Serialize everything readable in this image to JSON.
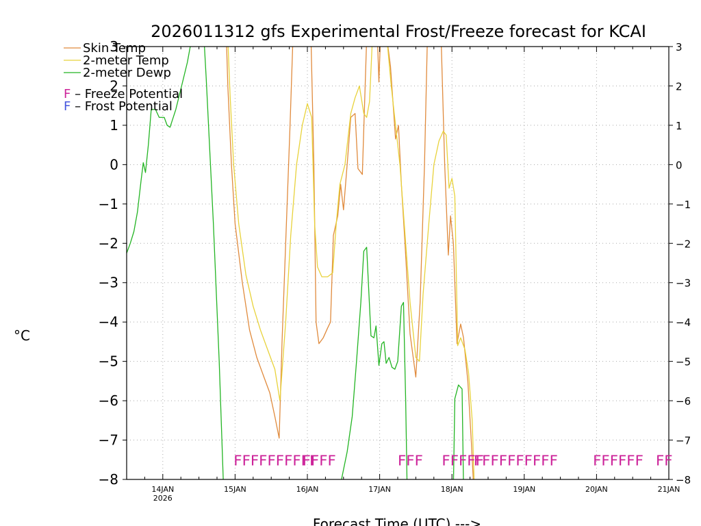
{
  "chart_data": {
    "type": "line",
    "title": "2026011312 gfs Experimental Frost/Freeze forecast for KCAI",
    "ylabel": "°C",
    "xlabel": "Forecast Time (UTC) --->",
    "ylim": [
      -8,
      3
    ],
    "xlim": [
      0,
      7.5
    ],
    "yticks": [
      -8,
      -7,
      -6,
      -5,
      -4,
      -3,
      -2,
      -1,
      0,
      1,
      2,
      3
    ],
    "yticks_right": [
      -8,
      -7,
      -6,
      -5,
      -4,
      -3,
      -2,
      -1,
      0,
      1,
      2,
      3
    ],
    "xticks": [
      {
        "x": 0.5,
        "label": "14JAN",
        "sub": "2026"
      },
      {
        "x": 1.5,
        "label": "15JAN",
        "sub": ""
      },
      {
        "x": 2.5,
        "label": "16JAN",
        "sub": ""
      },
      {
        "x": 3.5,
        "label": "17JAN",
        "sub": ""
      },
      {
        "x": 4.5,
        "label": "18JAN",
        "sub": ""
      },
      {
        "x": 5.5,
        "label": "19JAN",
        "sub": ""
      },
      {
        "x": 6.5,
        "label": "20JAN",
        "sub": ""
      },
      {
        "x": 7.5,
        "label": "21JAN",
        "sub": ""
      }
    ],
    "grid": true,
    "legend_position": "top-left",
    "colors": {
      "skin": "#e08a3c",
      "t2m": "#e8d23a",
      "dewp": "#22b422",
      "freeze": "#cc2299",
      "frost": "#4455dd"
    },
    "series": [
      {
        "name": "Skin Temp",
        "key": "skin",
        "points": [
          [
            1.38,
            3.2
          ],
          [
            1.4,
            2.0
          ],
          [
            1.45,
            0.0
          ],
          [
            1.5,
            -1.5
          ],
          [
            1.6,
            -3.0
          ],
          [
            1.7,
            -4.2
          ],
          [
            1.8,
            -4.9
          ],
          [
            1.9,
            -5.4
          ],
          [
            1.98,
            -5.8
          ],
          [
            2.05,
            -6.4
          ],
          [
            2.11,
            -6.95
          ],
          [
            2.15,
            -4.5
          ],
          [
            2.2,
            -2.0
          ],
          [
            2.26,
            1.0
          ],
          [
            2.3,
            3.2
          ],
          [
            2.55,
            3.2
          ],
          [
            2.59,
            0.0
          ],
          [
            2.62,
            -4.0
          ],
          [
            2.66,
            -4.55
          ],
          [
            2.72,
            -4.4
          ],
          [
            2.78,
            -4.15
          ],
          [
            2.82,
            -4.0
          ],
          [
            2.86,
            -1.8
          ],
          [
            2.92,
            -1.3
          ],
          [
            2.96,
            -0.5
          ],
          [
            3.0,
            -1.15
          ],
          [
            3.05,
            0.0
          ],
          [
            3.1,
            1.2
          ],
          [
            3.16,
            1.3
          ],
          [
            3.2,
            -0.1
          ],
          [
            3.26,
            -0.25
          ],
          [
            3.32,
            3.2
          ],
          [
            3.47,
            3.2
          ],
          [
            3.49,
            2.1
          ],
          [
            3.51,
            3.2
          ],
          [
            3.6,
            3.2
          ],
          [
            3.65,
            2.5
          ],
          [
            3.72,
            0.65
          ],
          [
            3.76,
            1.0
          ],
          [
            3.8,
            -0.5
          ],
          [
            3.85,
            -2.0
          ],
          [
            3.92,
            -4.3
          ],
          [
            4.0,
            -5.4
          ],
          [
            4.06,
            -3.5
          ],
          [
            4.12,
            0.0
          ],
          [
            4.16,
            3.2
          ],
          [
            4.35,
            3.2
          ],
          [
            4.4,
            0.0
          ],
          [
            4.45,
            -2.3
          ],
          [
            4.48,
            -1.3
          ],
          [
            4.52,
            -2.0
          ],
          [
            4.57,
            -4.55
          ],
          [
            4.62,
            -4.05
          ],
          [
            4.66,
            -4.4
          ],
          [
            4.72,
            -5.5
          ],
          [
            4.77,
            -7.1
          ],
          [
            4.8,
            -8.2
          ]
        ]
      },
      {
        "name": "2-meter Temp",
        "key": "t2m",
        "points": [
          [
            1.4,
            3.2
          ],
          [
            1.43,
            1.8
          ],
          [
            1.48,
            0.0
          ],
          [
            1.55,
            -1.5
          ],
          [
            1.65,
            -2.8
          ],
          [
            1.75,
            -3.6
          ],
          [
            1.85,
            -4.2
          ],
          [
            1.95,
            -4.7
          ],
          [
            2.05,
            -5.2
          ],
          [
            2.12,
            -6.0
          ],
          [
            2.2,
            -4.0
          ],
          [
            2.27,
            -1.8
          ],
          [
            2.35,
            0.0
          ],
          [
            2.43,
            1.0
          ],
          [
            2.5,
            1.55
          ],
          [
            2.56,
            1.2
          ],
          [
            2.6,
            -1.5
          ],
          [
            2.64,
            -2.6
          ],
          [
            2.7,
            -2.85
          ],
          [
            2.78,
            -2.85
          ],
          [
            2.85,
            -2.75
          ],
          [
            2.9,
            -1.5
          ],
          [
            2.95,
            -0.5
          ],
          [
            3.02,
            0.0
          ],
          [
            3.1,
            1.3
          ],
          [
            3.16,
            1.7
          ],
          [
            3.22,
            2.0
          ],
          [
            3.28,
            1.3
          ],
          [
            3.32,
            1.2
          ],
          [
            3.36,
            1.6
          ],
          [
            3.4,
            3.2
          ],
          [
            3.6,
            3.2
          ],
          [
            3.66,
            2.0
          ],
          [
            3.72,
            1.0
          ],
          [
            3.78,
            0.0
          ],
          [
            3.84,
            -1.5
          ],
          [
            3.92,
            -3.5
          ],
          [
            4.0,
            -4.9
          ],
          [
            4.05,
            -5.0
          ],
          [
            4.1,
            -3.3
          ],
          [
            4.18,
            -1.5
          ],
          [
            4.25,
            0.0
          ],
          [
            4.32,
            0.6
          ],
          [
            4.38,
            0.85
          ],
          [
            4.42,
            0.75
          ],
          [
            4.46,
            -0.6
          ],
          [
            4.5,
            -0.35
          ],
          [
            4.54,
            -0.8
          ],
          [
            4.58,
            -4.6
          ],
          [
            4.62,
            -4.4
          ],
          [
            4.68,
            -4.7
          ],
          [
            4.73,
            -5.3
          ],
          [
            4.78,
            -6.5
          ],
          [
            4.81,
            -8.2
          ]
        ]
      },
      {
        "name": "2-meter Dewp",
        "key": "dewp",
        "points": [
          [
            0.0,
            -2.25
          ],
          [
            0.05,
            -2.0
          ],
          [
            0.1,
            -1.7
          ],
          [
            0.15,
            -1.2
          ],
          [
            0.2,
            -0.4
          ],
          [
            0.23,
            0.05
          ],
          [
            0.26,
            -0.2
          ],
          [
            0.3,
            0.5
          ],
          [
            0.34,
            1.4
          ],
          [
            0.4,
            1.4
          ],
          [
            0.45,
            1.2
          ],
          [
            0.52,
            1.2
          ],
          [
            0.56,
            1.0
          ],
          [
            0.6,
            0.95
          ],
          [
            0.68,
            1.4
          ],
          [
            0.76,
            2.0
          ],
          [
            0.84,
            2.6
          ],
          [
            0.9,
            3.2
          ],
          [
            1.07,
            3.2
          ],
          [
            1.1,
            2.2
          ],
          [
            1.2,
            -1.5
          ],
          [
            1.28,
            -5.0
          ],
          [
            1.34,
            -8.2
          ],
          [
            2.95,
            -8.2
          ],
          [
            3.05,
            -7.3
          ],
          [
            3.12,
            -6.4
          ],
          [
            3.18,
            -5.0
          ],
          [
            3.24,
            -3.5
          ],
          [
            3.28,
            -2.2
          ],
          [
            3.32,
            -2.1
          ],
          [
            3.38,
            -4.35
          ],
          [
            3.42,
            -4.4
          ],
          [
            3.45,
            -4.1
          ],
          [
            3.49,
            -5.1
          ],
          [
            3.53,
            -4.55
          ],
          [
            3.56,
            -4.5
          ],
          [
            3.59,
            -5.05
          ],
          [
            3.63,
            -4.9
          ],
          [
            3.67,
            -5.15
          ],
          [
            3.71,
            -5.2
          ],
          [
            3.75,
            -5.0
          ],
          [
            3.8,
            -3.6
          ],
          [
            3.83,
            -3.5
          ],
          [
            3.86,
            -6.0
          ],
          [
            3.88,
            -8.2
          ],
          [
            4.52,
            -8.2
          ],
          [
            4.54,
            -5.95
          ],
          [
            4.59,
            -5.6
          ],
          [
            4.64,
            -5.7
          ],
          [
            4.66,
            -8.2
          ]
        ]
      }
    ],
    "legend_entries": [
      {
        "label": "Skin Temp",
        "key": "skin"
      },
      {
        "label": "2-meter Temp",
        "key": "t2m"
      },
      {
        "label": "2-meter Dewp",
        "key": "dewp"
      }
    ],
    "potential_legend": [
      {
        "symbol": "F",
        "label": " – Freeze Potential",
        "key": "freeze"
      },
      {
        "symbol": "F",
        "label": " – Frost Potential",
        "key": "frost"
      }
    ],
    "flag_groups": [
      {
        "text": "FFFFFFFFFF",
        "x": 1.48,
        "y": -7.5
      },
      {
        "text": "FFFF",
        "x": 2.43,
        "y": -7.5
      },
      {
        "text": "FFF",
        "x": 3.75,
        "y": -7.5
      },
      {
        "text": "FFFFF",
        "x": 4.36,
        "y": -7.5
      },
      {
        "text": "FFFFFFFFFF",
        "x": 4.8,
        "y": -7.5
      },
      {
        "text": "FFFFFF",
        "x": 6.45,
        "y": -7.5
      },
      {
        "text": "FF",
        "x": 7.32,
        "y": -7.5
      }
    ]
  }
}
